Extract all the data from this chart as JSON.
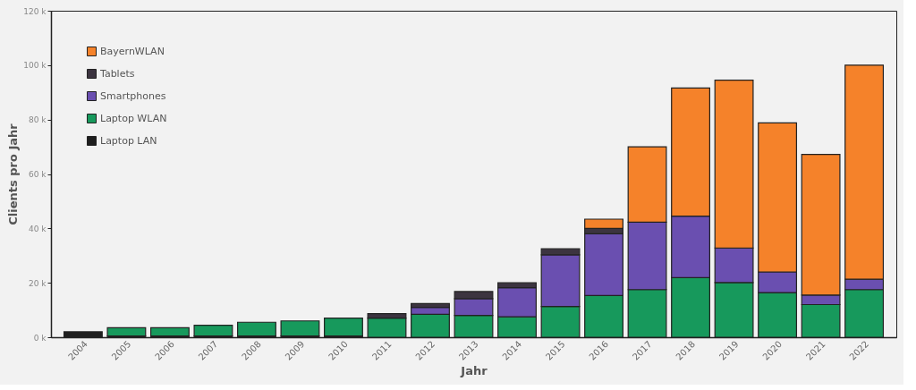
{
  "chart_data": {
    "type": "bar",
    "stacked": true,
    "xlabel": "Jahr",
    "ylabel": "Clients pro Jahr",
    "categories": [
      "2004",
      "2005",
      "2006",
      "2007",
      "2008",
      "2009",
      "2010",
      "2011",
      "2012",
      "2013",
      "2014",
      "2015",
      "2016",
      "2017",
      "2018",
      "2019",
      "2020",
      "2021",
      "2022"
    ],
    "series": [
      {
        "name": "Laptop LAN",
        "color": "#1e1e1e",
        "values": [
          2,
          0.5,
          0.5,
          0.5,
          0.5,
          0.5,
          0.5,
          null,
          0,
          0,
          0,
          0,
          0,
          0,
          0,
          0,
          0,
          0,
          0
        ]
      },
      {
        "name": "Laptop WLAN",
        "color": "#17995c",
        "values": [
          0,
          3,
          3,
          3.9,
          5,
          5.5,
          6.5,
          7,
          8.4,
          8,
          7.5,
          11.3,
          15.3,
          17.5,
          21.9,
          20.1,
          16.4,
          12,
          17.5
        ]
      },
      {
        "name": "Smartphones",
        "color": "#6a4fb0",
        "values": [
          0,
          0,
          0,
          0,
          0,
          0,
          0,
          null,
          2.6,
          6.2,
          10.7,
          19,
          22.7,
          24.8,
          22.6,
          12.7,
          7.6,
          3.5,
          3.8
        ]
      },
      {
        "name": "Tablets",
        "color": "#3c3440",
        "values": [
          0,
          0,
          0,
          0,
          0,
          0,
          0,
          1.7,
          1.4,
          2.6,
          1.8,
          2.2,
          2,
          0,
          0,
          0,
          0,
          0,
          0
        ]
      },
      {
        "name": "BayernWLAN",
        "color": "#f5822a",
        "values": [
          0,
          0,
          0,
          0,
          0,
          0,
          0,
          0,
          0,
          0,
          0,
          0,
          3.4,
          27.7,
          47.1,
          61.7,
          54.8,
          51.7,
          78.7
        ]
      }
    ],
    "ylim": [
      0,
      120
    ],
    "yticks": [
      {
        "value": 0,
        "label": "0 k"
      },
      {
        "value": 20,
        "label": "20 k"
      },
      {
        "value": 40,
        "label": "40 k"
      },
      {
        "value": 60,
        "label": "60 k"
      },
      {
        "value": 80,
        "label": "80 k"
      },
      {
        "value": 100,
        "label": "100 k"
      },
      {
        "value": 120,
        "label": "120 k"
      }
    ],
    "grid": false,
    "legend": "top left"
  }
}
